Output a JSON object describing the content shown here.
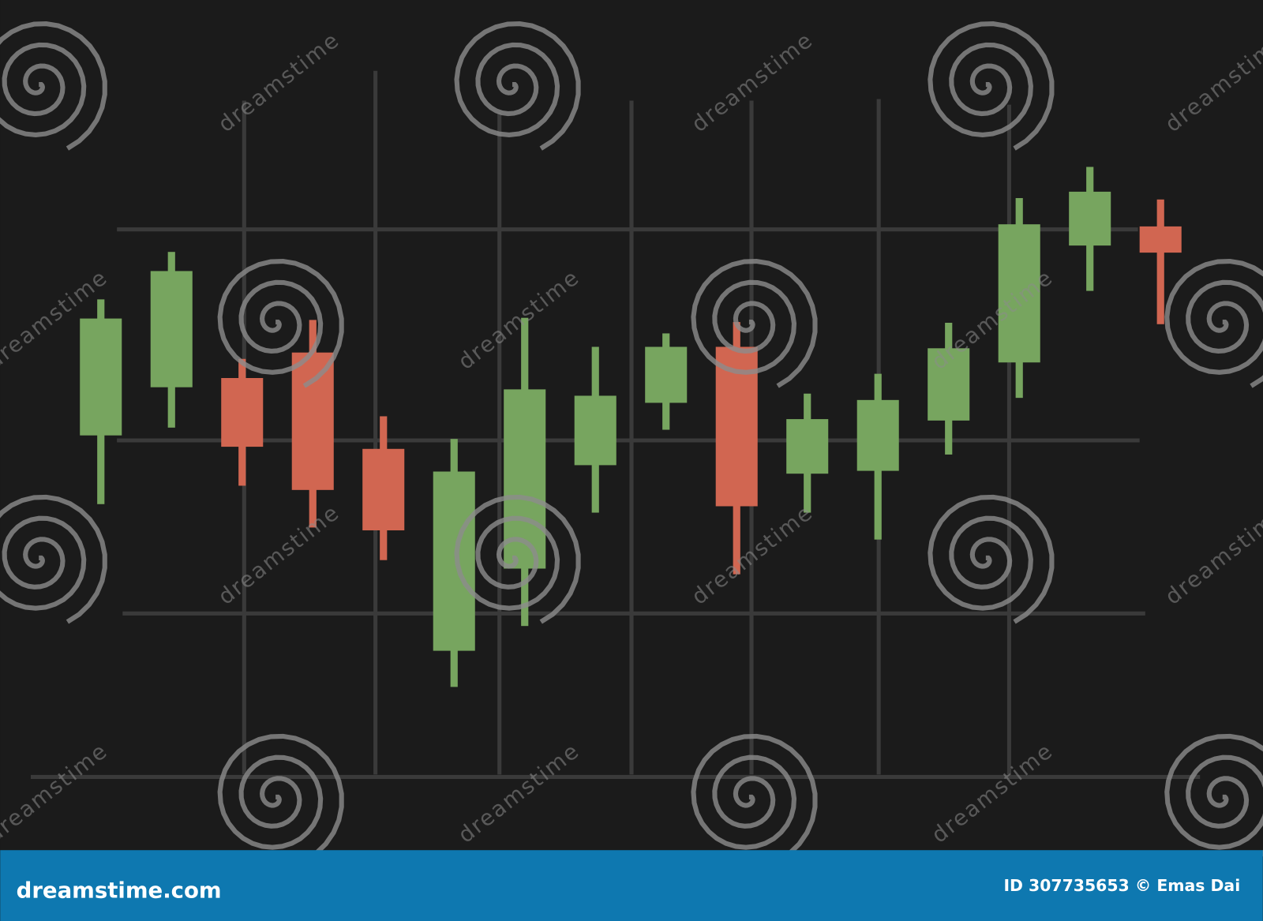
{
  "chart_data": {
    "type": "candlestick",
    "categories": [
      null,
      null,
      null,
      null,
      null,
      null,
      null,
      null,
      null,
      null,
      null,
      null,
      null,
      null,
      null,
      null
    ],
    "open": [
      48.2,
      55.0,
      56.3,
      59.9,
      46.3,
      17.8,
      29.4,
      44.0,
      52.8,
      60.7,
      42.8,
      43.2,
      50.3,
      58.5,
      75.0,
      77.7
    ],
    "high": [
      67.4,
      74.1,
      59.0,
      64.5,
      50.9,
      47.7,
      64.8,
      60.7,
      62.6,
      64.2,
      54.1,
      56.9,
      64.1,
      81.7,
      86.1,
      81.5
    ],
    "low": [
      38.5,
      49.3,
      41.1,
      35.2,
      30.6,
      12.7,
      21.3,
      37.3,
      49.0,
      28.6,
      37.3,
      33.5,
      45.5,
      53.5,
      68.6,
      63.9
    ],
    "close": [
      64.7,
      71.4,
      46.6,
      40.5,
      34.8,
      43.1,
      54.7,
      53.8,
      60.7,
      38.2,
      50.5,
      53.2,
      60.5,
      78.0,
      82.6,
      74.0
    ],
    "up_color": "#77a55f",
    "down_color": "#d16651",
    "ylim": [
      0,
      100
    ]
  },
  "watermark": "dreamstime",
  "footer": {
    "site": "dreamstime.com",
    "credit": "ID 307735653 © Emas Dai"
  }
}
